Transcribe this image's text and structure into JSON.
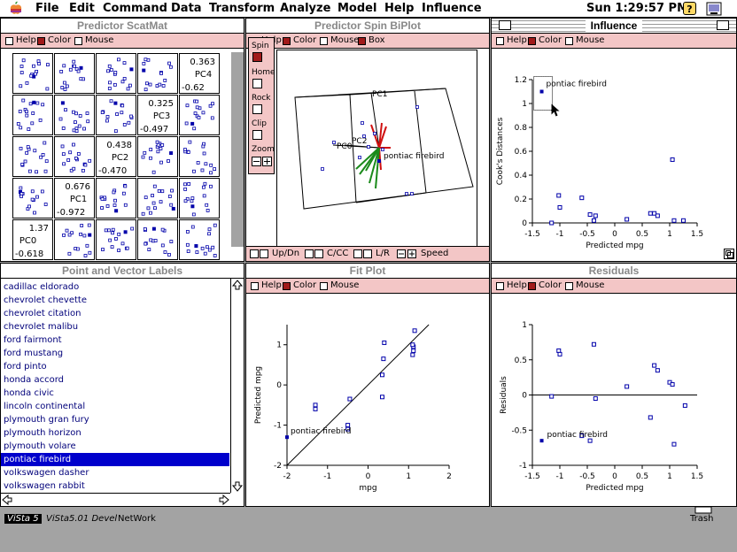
{
  "menubar": {
    "menus": [
      "File",
      "Edit",
      "Command",
      "Data",
      "Transform",
      "Analyze",
      "Model",
      "Help",
      "Influence"
    ],
    "clock": "Sun 1:29:57 PM",
    "help_icon": "?"
  },
  "windows": {
    "scatmat": {
      "title": "Predictor ScatMat",
      "options": [
        "Help",
        "Color",
        "Mouse"
      ],
      "labels": [
        {
          "name": "PC4",
          "max": "0.363",
          "min": "-0.62"
        },
        {
          "name": "PC3",
          "max": "0.325",
          "min": "-0.497"
        },
        {
          "name": "PC2",
          "max": "0.438",
          "min": "-0.470"
        },
        {
          "name": "PC1",
          "max": "0.676",
          "min": "-0.972"
        },
        {
          "name": "PC0",
          "max": "1.37",
          "min": "-0.618"
        }
      ]
    },
    "spinplot": {
      "title": "Predictor Spin BiPlot",
      "options": [
        "Help",
        "Color",
        "Mouse",
        "Box"
      ],
      "side_controls": [
        "Spin",
        "Home",
        "Rock",
        "Clip",
        "Zoom"
      ],
      "bottom_controls": [
        "Up/Dn",
        "C/CC",
        "L/R",
        "Speed"
      ],
      "axis_labels": [
        "PC1",
        "PC2",
        "PC0"
      ],
      "point_label": "pontiac firebird"
    },
    "influence": {
      "title": "Influence",
      "options": [
        "Help",
        "Color",
        "Mouse"
      ],
      "ylabel": "Cook's Distances",
      "xlabel": "Predicted mpg",
      "yticks": [
        "0",
        "0.2",
        "0.4",
        "0.6",
        "0.8",
        "1",
        "1.2"
      ],
      "xticks": [
        "-1.5",
        "-1",
        "-0.5",
        "0",
        "0.5",
        "1",
        "1.5"
      ],
      "point_label": "pontiac firebird"
    },
    "labels": {
      "title": "Point and Vector Labels",
      "items": [
        "cadillac eldorado",
        "chevrolet chevette",
        "chevrolet citation",
        "chevrolet malibu",
        "ford fairmont",
        "ford mustang",
        "ford pinto",
        "honda accord",
        "honda civic",
        "lincoln continental",
        "plymouth gran fury",
        "plymouth horizon",
        "plymouth volare",
        "pontiac firebird",
        "volkswagen dasher",
        "volkswagen rabbit"
      ],
      "selected_index": 13
    },
    "fitplot": {
      "title": "Fit Plot",
      "options": [
        "Help",
        "Color",
        "Mouse"
      ],
      "ylabel": "Predicted mpg",
      "xlabel": "mpg",
      "xticks": [
        "-2",
        "-1",
        "0",
        "1",
        "2"
      ],
      "yticks": [
        "-2",
        "-1",
        "0",
        "1"
      ],
      "point_label": "pontiac firebird"
    },
    "residuals": {
      "title": "Residuals",
      "options": [
        "Help",
        "Color",
        "Mouse"
      ],
      "ylabel": "Residuals",
      "xlabel": "Predicted mpg",
      "xticks": [
        "-1.5",
        "-1",
        "-0.5",
        "0",
        "0.5",
        "1",
        "1.5"
      ],
      "yticks": [
        "-1",
        "-0.5",
        "0",
        "0.5",
        "1"
      ],
      "point_label": "pontiac firebird"
    }
  },
  "desktop": {
    "items": [
      "ViSta 5",
      "ViSta5.01 Devel",
      "NetWork"
    ],
    "trash": "Trash"
  },
  "colors": {
    "option_bar": "#f3c6c6",
    "accent": "#a11a1a",
    "point": "#0000aa",
    "selection": "#0000cc"
  },
  "chart_data": [
    {
      "type": "scatter",
      "title": "Influence",
      "xlabel": "Predicted mpg",
      "ylabel": "Cook's Distances",
      "xlim": [
        -1.5,
        1.5
      ],
      "ylim": [
        0,
        1.2
      ],
      "x": [
        -1.33,
        -1.15,
        -1.0,
        -1.02,
        -0.6,
        -0.45,
        -0.38,
        -0.35,
        0.22,
        0.65,
        0.72,
        0.78,
        1.05,
        1.08,
        1.25
      ],
      "y": [
        1.1,
        0.0,
        0.13,
        0.23,
        0.21,
        0.07,
        0.02,
        0.06,
        0.03,
        0.08,
        0.08,
        0.06,
        0.53,
        0.02,
        0.02
      ]
    },
    {
      "type": "scatter",
      "title": "Fit Plot",
      "xlabel": "mpg",
      "ylabel": "Predicted mpg",
      "xlim": [
        -2,
        2
      ],
      "ylim": [
        -2,
        1.5
      ],
      "x": [
        -2.0,
        -1.3,
        -1.3,
        -0.5,
        -0.5,
        -0.45,
        0.35,
        0.35,
        0.38,
        0.4,
        1.1,
        1.12,
        1.12,
        1.1,
        1.15
      ],
      "y": [
        -1.3,
        -0.5,
        -0.6,
        -1.0,
        -1.1,
        -0.35,
        -0.3,
        0.25,
        0.65,
        1.05,
        0.75,
        0.85,
        0.95,
        1.0,
        1.35
      ]
    },
    {
      "type": "scatter",
      "title": "Residuals",
      "xlabel": "Predicted mpg",
      "ylabel": "Residuals",
      "xlim": [
        -1.5,
        1.5
      ],
      "ylim": [
        -1,
        1
      ],
      "x": [
        -1.33,
        -1.15,
        -1.02,
        -1.0,
        -0.6,
        -0.45,
        -0.38,
        -0.35,
        0.22,
        0.65,
        0.72,
        0.78,
        1.0,
        1.05,
        1.08,
        1.28
      ],
      "y": [
        -0.65,
        -0.02,
        0.63,
        0.58,
        -0.58,
        -0.65,
        0.72,
        -0.05,
        0.12,
        -0.32,
        0.42,
        0.35,
        0.18,
        0.15,
        -0.7,
        -0.15
      ]
    }
  ]
}
